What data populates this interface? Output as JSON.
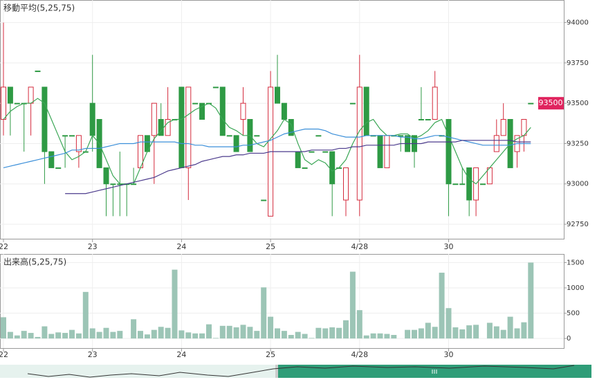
{
  "chart_data": [
    {
      "type": "candlestick",
      "title": "移動平均(5,25,75)",
      "categories": [
        "22",
        null,
        null,
        null,
        null,
        null,
        null,
        null,
        null,
        null,
        null,
        null,
        null,
        "23",
        null,
        null,
        null,
        null,
        null,
        null,
        null,
        null,
        null,
        null,
        null,
        null,
        "24",
        null,
        null,
        null,
        null,
        null,
        null,
        null,
        null,
        null,
        null,
        null,
        null,
        "25",
        null,
        null,
        null,
        null,
        null,
        null,
        null,
        null,
        null,
        null,
        null,
        null,
        "4/28",
        null,
        null,
        null,
        null,
        null,
        null,
        null,
        null,
        null,
        null,
        null,
        null,
        "30",
        null,
        null,
        null,
        null,
        null,
        null,
        null,
        null,
        null,
        null,
        null,
        null
      ],
      "open": [
        93400,
        93600,
        93500,
        93500,
        93500,
        93700,
        93600,
        93200,
        93100,
        93300,
        93300,
        93200,
        93200,
        93500,
        93400,
        93100,
        93000,
        93000,
        93000,
        93000,
        93100,
        93300,
        93300,
        93400,
        93300,
        93400,
        93600,
        93100,
        93500,
        93500,
        93500,
        93600,
        93600,
        93300,
        93300,
        93400,
        93400,
        93300,
        92900,
        92800,
        93600,
        93500,
        93400,
        93200,
        93100,
        93200,
        93300,
        93200,
        93200,
        93100,
        92900,
        93500,
        92900,
        93600,
        93300,
        93300,
        93100,
        93300,
        93300,
        93300,
        93300,
        93400,
        93400,
        93400,
        93300,
        93400,
        93000,
        93000,
        93100,
        92900,
        93000,
        93000,
        93200,
        93300,
        93400,
        93200,
        93300,
        93500
      ],
      "high": [
        94000,
        93600,
        93500,
        93500,
        93600,
        93700,
        93600,
        93200,
        93100,
        93300,
        93300,
        93300,
        93200,
        93800,
        93400,
        93100,
        93000,
        93200,
        93000,
        93100,
        93300,
        93300,
        93500,
        93500,
        93600,
        93400,
        93600,
        93600,
        93500,
        93500,
        93500,
        93600,
        93600,
        93300,
        93300,
        93600,
        93400,
        93300,
        92900,
        93700,
        93800,
        93500,
        93400,
        93200,
        93100,
        93200,
        93300,
        93200,
        93200,
        93100,
        93100,
        93500,
        93800,
        93600,
        93300,
        93300,
        93300,
        93300,
        93300,
        93300,
        93300,
        93600,
        93400,
        93700,
        93300,
        93400,
        93000,
        93100,
        93100,
        93100,
        93000,
        93100,
        93400,
        93500,
        93400,
        93300,
        93400,
        93500
      ],
      "low": [
        93300,
        93300,
        93500,
        93200,
        93300,
        93700,
        93000,
        93100,
        93100,
        93100,
        93300,
        93100,
        93200,
        93200,
        93100,
        92800,
        92800,
        92800,
        92800,
        93000,
        93100,
        93200,
        93000,
        93300,
        93300,
        93400,
        93100,
        92900,
        93500,
        93400,
        93500,
        93600,
        93300,
        93300,
        93200,
        93300,
        93200,
        93300,
        92900,
        92800,
        93500,
        93400,
        93300,
        93100,
        93100,
        93200,
        93300,
        93200,
        92800,
        93100,
        92800,
        93500,
        92800,
        93300,
        93300,
        93100,
        93100,
        93300,
        93200,
        93200,
        93100,
        93400,
        93400,
        93400,
        93300,
        92800,
        93000,
        93000,
        92800,
        92800,
        93000,
        93000,
        93200,
        93300,
        93100,
        93100,
        93200,
        93500
      ],
      "close": [
        93600,
        93500,
        93500,
        93500,
        93600,
        93700,
        93200,
        93100,
        93100,
        93300,
        93300,
        93300,
        93200,
        93300,
        93100,
        93000,
        93000,
        93000,
        93000,
        93000,
        93300,
        93200,
        93500,
        93300,
        93400,
        93400,
        93100,
        93600,
        93500,
        93400,
        93500,
        93600,
        93300,
        93300,
        93200,
        93500,
        93200,
        93300,
        92900,
        93600,
        93500,
        93400,
        93300,
        93100,
        93100,
        93200,
        93300,
        93200,
        93000,
        93100,
        93100,
        93500,
        93600,
        93300,
        93300,
        93100,
        93300,
        93300,
        93300,
        93200,
        93200,
        93400,
        93400,
        93600,
        93300,
        93000,
        93000,
        93000,
        92900,
        93100,
        93000,
        93100,
        93300,
        93400,
        93100,
        93300,
        93400,
        93500
      ],
      "up_color": "#d42a3c",
      "down_color": "#2e9a44",
      "series": [
        {
          "color": "#3aa655",
          "values": [
            93400,
            93450,
            93480,
            93500,
            93500,
            93530,
            93500,
            93400,
            93300,
            93200,
            93150,
            93170,
            93200,
            93300,
            93250,
            93150,
            93050,
            93000,
            93000,
            93000,
            93100,
            93200,
            93280,
            93330,
            93380,
            93400,
            93400,
            93430,
            93460,
            93480,
            93500,
            93470,
            93400,
            93350,
            93330,
            93300,
            93300,
            93250,
            93230,
            93280,
            93330,
            93400,
            93370,
            93250,
            93150,
            93120,
            93150,
            93130,
            93080,
            93100,
            93150,
            93250,
            93330,
            93380,
            93400,
            93340,
            93300,
            93300,
            93310,
            93310,
            93280,
            93300,
            93330,
            93380,
            93400,
            93300,
            93200,
            93100,
            93030,
            93000,
            93050,
            93100,
            93150,
            93200,
            93250,
            93280,
            93300,
            93350
          ]
        },
        {
          "color": "#3b8fd9",
          "values": [
            93100,
            93110,
            93120,
            93130,
            93140,
            93150,
            93160,
            93170,
            93180,
            93190,
            93210,
            93210,
            93220,
            93220,
            93220,
            93230,
            93240,
            93250,
            93250,
            93250,
            93260,
            93260,
            93260,
            93260,
            93260,
            93260,
            93250,
            93250,
            93240,
            93240,
            93230,
            93230,
            93230,
            93230,
            93230,
            93240,
            93240,
            93250,
            93260,
            93270,
            93290,
            93310,
            93320,
            93330,
            93340,
            93340,
            93340,
            93330,
            93310,
            93300,
            93290,
            93290,
            93290,
            93300,
            93300,
            93300,
            93300,
            93300,
            93290,
            93290,
            93280,
            93280,
            93290,
            93300,
            93300,
            93290,
            93280,
            93270,
            93260,
            93250,
            93240,
            93240,
            93240,
            93240,
            93240,
            93250,
            93250,
            93250
          ]
        },
        {
          "color": "#4b3a8c",
          "values": [
            null,
            null,
            null,
            null,
            null,
            null,
            null,
            null,
            null,
            92940,
            92940,
            92940,
            92940,
            92950,
            92960,
            92970,
            92980,
            92990,
            93000,
            93010,
            93020,
            93030,
            93040,
            93060,
            93080,
            93090,
            93100,
            93110,
            93120,
            93140,
            93150,
            93160,
            93170,
            93170,
            93180,
            93180,
            93190,
            93190,
            93190,
            93200,
            93200,
            93200,
            93200,
            93200,
            93200,
            93210,
            93210,
            93210,
            93210,
            93220,
            93220,
            93230,
            93230,
            93240,
            93240,
            93240,
            93240,
            93240,
            93250,
            93250,
            93250,
            93250,
            93260,
            93260,
            93260,
            93260,
            93260,
            93270,
            93270,
            93270,
            93270,
            93270,
            93270,
            93270,
            93270,
            93260,
            93260,
            93260
          ]
        }
      ],
      "last_price": 93500,
      "last_price_color": "#e0245e",
      "ylim": [
        92660,
        94140
      ],
      "yticks": [
        92750,
        93000,
        93250,
        93500,
        93750,
        94000
      ],
      "grid": true
    },
    {
      "type": "bar",
      "title": "出来高(5,25,75)",
      "categories": [
        "22",
        null,
        null,
        null,
        null,
        null,
        null,
        null,
        null,
        null,
        null,
        null,
        null,
        "23",
        null,
        null,
        null,
        null,
        null,
        null,
        null,
        null,
        null,
        null,
        null,
        null,
        "24",
        null,
        null,
        null,
        null,
        null,
        null,
        null,
        null,
        null,
        null,
        null,
        null,
        "25",
        null,
        null,
        null,
        null,
        null,
        null,
        null,
        null,
        null,
        null,
        null,
        null,
        "4/28",
        null,
        null,
        null,
        null,
        null,
        null,
        null,
        null,
        null,
        null,
        null,
        null,
        "30",
        null,
        null,
        null,
        null,
        null,
        null,
        null,
        null,
        null,
        null,
        null,
        null
      ],
      "values": [
        420,
        130,
        60,
        150,
        110,
        30,
        240,
        90,
        120,
        110,
        170,
        100,
        920,
        200,
        130,
        210,
        130,
        150,
        0,
        380,
        150,
        80,
        170,
        230,
        210,
        1360,
        160,
        120,
        100,
        100,
        280,
        10,
        250,
        250,
        220,
        270,
        230,
        150,
        1010,
        430,
        200,
        150,
        70,
        130,
        90,
        10,
        210,
        200,
        220,
        210,
        360,
        1320,
        560,
        60,
        100,
        100,
        90,
        70,
        0,
        170,
        170,
        200,
        310,
        230,
        1300,
        600,
        220,
        180,
        260,
        270,
        0,
        310,
        240,
        170,
        430,
        200,
        320,
        1500
      ],
      "color": "#9cc5b6",
      "ylim": [
        -190,
        1670
      ],
      "yticks": [
        0,
        500,
        1000,
        1500
      ],
      "grid": true
    }
  ]
}
